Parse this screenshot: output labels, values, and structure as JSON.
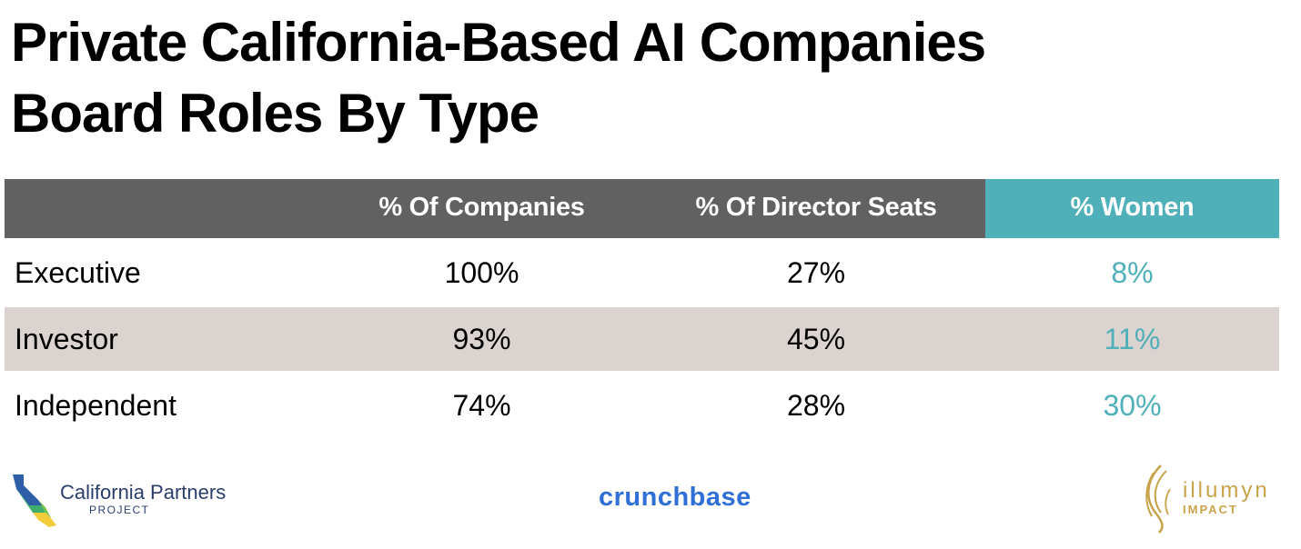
{
  "title_line1": "Private California-Based AI Companies",
  "title_line2": "Board Roles By Type",
  "chart_data": {
    "type": "table",
    "columns": [
      "",
      "% Of Companies",
      "% Of Director Seats",
      "% Women"
    ],
    "rows": [
      {
        "label": "Executive",
        "companies": "100%",
        "director_seats": "27%",
        "women": "8%"
      },
      {
        "label": "Investor",
        "companies": "93%",
        "director_seats": "45%",
        "women": "11%"
      },
      {
        "label": "Independent",
        "companies": "74%",
        "director_seats": "28%",
        "women": "30%"
      }
    ]
  },
  "logos": {
    "cpp_name": "California Partners",
    "cpp_sub": "PROJECT",
    "crunchbase": "crunchbase",
    "illumyn_name": "illumyn",
    "illumyn_sub": "IMPACT"
  },
  "colors": {
    "header_bg": "#616161",
    "accent_teal": "#4fb0ba",
    "alt_row": "#dbd3d0"
  }
}
